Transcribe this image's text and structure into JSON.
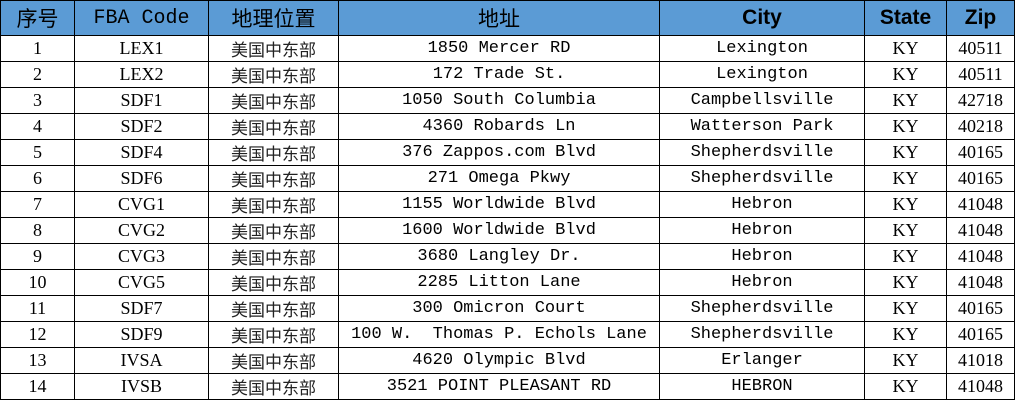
{
  "headers": [
    "序号",
    "FBA Code",
    "地理位置",
    "地址",
    "City",
    "State",
    "Zip"
  ],
  "colors": {
    "header_bg": "#5b9bd5"
  },
  "rows": [
    [
      "1",
      "LEX1",
      "美国中东部",
      "1850 Mercer RD",
      "Lexington",
      "KY",
      "40511"
    ],
    [
      "2",
      "LEX2",
      "美国中东部",
      "172 Trade St.",
      "Lexington",
      "KY",
      "40511"
    ],
    [
      "3",
      "SDF1",
      "美国中东部",
      "1050 South Columbia",
      "Campbellsville",
      "KY",
      "42718"
    ],
    [
      "4",
      "SDF2",
      "美国中东部",
      "4360 Robards Ln",
      "Watterson Park",
      "KY",
      "40218"
    ],
    [
      "5",
      "SDF4",
      "美国中东部",
      "376 Zappos.com Blvd",
      "Shepherdsville",
      "KY",
      "40165"
    ],
    [
      "6",
      "SDF6",
      "美国中东部",
      "271 Omega Pkwy",
      "Shepherdsville",
      "KY",
      "40165"
    ],
    [
      "7",
      "CVG1",
      "美国中东部",
      "1155 Worldwide Blvd",
      "Hebron",
      "KY",
      "41048"
    ],
    [
      "8",
      "CVG2",
      "美国中东部",
      "1600 Worldwide Blvd",
      "Hebron",
      "KY",
      "41048"
    ],
    [
      "9",
      "CVG3",
      "美国中东部",
      "3680 Langley Dr.",
      "Hebron",
      "KY",
      "41048"
    ],
    [
      "10",
      "CVG5",
      "美国中东部",
      "2285 Litton Lane",
      "Hebron",
      "KY",
      "41048"
    ],
    [
      "11",
      "SDF7",
      "美国中东部",
      "300 Omicron Court",
      "Shepherdsville",
      "KY",
      "40165"
    ],
    [
      "12",
      "SDF9",
      "美国中东部",
      "100 W.  Thomas P. Echols Lane",
      "Shepherdsville",
      "KY",
      "40165"
    ],
    [
      "13",
      "IVSA",
      "美国中东部",
      "4620 Olympic Blvd",
      "Erlanger",
      "KY",
      "41018"
    ],
    [
      "14",
      "IVSB",
      "美国中东部",
      "3521 POINT PLEASANT RD",
      "HEBRON",
      "KY",
      "41048"
    ]
  ]
}
